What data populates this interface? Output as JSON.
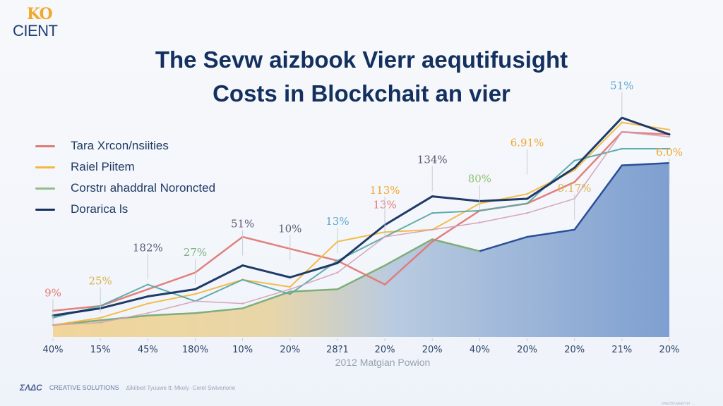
{
  "brand": {
    "logo_top": "KO",
    "logo_bottom": "CIENT"
  },
  "title": {
    "line1": "The Sevw aizbook Vierr aequtifusight",
    "line2": "Costs in Blockchait an vier"
  },
  "legend": [
    {
      "label": "Tara Xrcon/nsiities",
      "color": "#e07a76"
    },
    {
      "label": "Raiel Piitem",
      "color": "#f2b840"
    },
    {
      "label": "Corstrı ahaddral Noroncted",
      "color": "#7fb07f"
    },
    {
      "label": "Dorarica ls",
      "color": "#13305e"
    }
  ],
  "footer": {
    "logo1": "ΣΛΔC",
    "logo2": "CREATIVE SOLUTIONS",
    "caption": "Δΐkilbeit Tyuuwe tt: Mkoly ·Cerel Swlverione",
    "right_note": "ΛΛΕΟ5Λ ΕΕΕΛ ΕΓ ..."
  },
  "chart_data": {
    "type": "line",
    "title": "The Sevw aizbook Vierr aequtifusight Costs in Blockchait an vier",
    "xlabel": "2012 Matgian Powion",
    "ylabel": "",
    "x_tick_labels": [
      "40%",
      "15%",
      "45%",
      "180%",
      "10%",
      "20%",
      "28?1",
      "20%",
      "20%",
      "40%",
      "20%",
      "20%",
      "21%",
      "20%"
    ],
    "ylim": [
      0,
      100
    ],
    "grid": false,
    "legend_position": "top-left",
    "series": [
      {
        "name": "Tara Xrcon/nsiities",
        "color": "#e07a76",
        "width": 2.5,
        "values": [
          11,
          13,
          20,
          27,
          42,
          37,
          32,
          22,
          40,
          53,
          56,
          65,
          86,
          85
        ]
      },
      {
        "name": "Raiel Piitem",
        "color": "#f2b840",
        "width": 2,
        "values": [
          5,
          8,
          14,
          18,
          24,
          21,
          40,
          44,
          45,
          56,
          60,
          70,
          90,
          87
        ]
      },
      {
        "name": "Corstrı ahaddral Noroncted",
        "color": "#5aa8a8",
        "width": 2,
        "values": [
          8,
          13,
          22,
          15,
          24,
          18,
          32,
          42,
          52,
          53,
          56,
          74,
          79,
          79
        ]
      },
      {
        "name": "Dorarica ls",
        "color": "#13305e",
        "width": 3,
        "values": [
          9,
          12,
          17,
          20,
          30,
          25,
          31,
          47,
          59,
          57,
          58,
          71,
          92,
          85
        ]
      },
      {
        "name": "Pink Series",
        "color": "#d4a0b8",
        "width": 1.5,
        "values": [
          5,
          6,
          10,
          15,
          14,
          20,
          27,
          42,
          45,
          48,
          52,
          58,
          86,
          84
        ]
      }
    ],
    "areas": [
      {
        "name": "Green Area",
        "color": "#7fb07f",
        "values": [
          5,
          7,
          9,
          10,
          12,
          19,
          20,
          30,
          41,
          36,
          42,
          45,
          72,
          73
        ]
      }
    ],
    "annotations": [
      {
        "text": "9%",
        "x_index": 0,
        "color": "#e07a76",
        "y": 17
      },
      {
        "text": "25%",
        "x_index": 1,
        "color": "#d9b34a",
        "y": 22
      },
      {
        "text": "182%",
        "x_index": 2,
        "color": "#5a5a70",
        "y": 36
      },
      {
        "text": "27%",
        "x_index": 3,
        "color": "#7fb07f",
        "y": 34
      },
      {
        "text": "51%",
        "x_index": 4,
        "color": "#5a5a70",
        "y": 46
      },
      {
        "text": "10%",
        "x_index": 5,
        "color": "#5a5a70",
        "y": 44
      },
      {
        "text": "13%",
        "x_index": 6,
        "color": "#5aa8cc",
        "y": 47
      },
      {
        "text": "13%",
        "x_index": 7,
        "color": "#e07a76",
        "y": 54
      },
      {
        "text": "113%",
        "x_index": 7,
        "color": "#f2a830",
        "y": 60
      },
      {
        "text": "134%",
        "x_index": 8,
        "color": "#5a5a70",
        "y": 73
      },
      {
        "text": "80%",
        "x_index": 9,
        "color": "#8fc06f",
        "y": 65
      },
      {
        "text": "6.91%",
        "x_index": 10,
        "color": "#f2a830",
        "y": 80
      },
      {
        "text": "9.17%",
        "x_index": 11,
        "color": "#d9b34a",
        "y": 61
      },
      {
        "text": "51%",
        "x_index": 12,
        "color": "#5aa8cc",
        "y": 104
      },
      {
        "text": "6.0%",
        "x_index": 13,
        "color": "#f2a830",
        "y": 76
      }
    ]
  }
}
